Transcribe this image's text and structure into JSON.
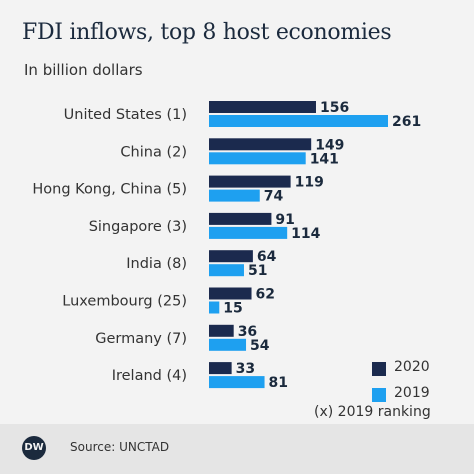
{
  "header": {
    "title": "FDI inflows, top 8 host economies",
    "subtitle": "In billion dollars"
  },
  "chart_data": {
    "type": "bar",
    "orientation": "horizontal",
    "title": "FDI inflows, top 8 host economies",
    "subtitle": "In billion dollars",
    "categories": [
      "United States (1)",
      "China (2)",
      "Hong Kong, China (5)",
      "Singapore (3)",
      "India (8)",
      "Luxembourg (25)",
      "Germany (7)",
      "Ireland (4)"
    ],
    "series": [
      {
        "name": "2020",
        "color": "#1b2a4e",
        "values": [
          156,
          149,
          119,
          91,
          64,
          62,
          36,
          33
        ]
      },
      {
        "name": "2019",
        "color": "#1ea0f0",
        "values": [
          261,
          141,
          74,
          114,
          51,
          15,
          54,
          81
        ]
      }
    ],
    "xlim": [
      0,
      261
    ],
    "grid": false,
    "legend_position": "bottom-right"
  },
  "legend": {
    "note": "(x) 2019 ranking"
  },
  "footer": {
    "logo_text": "DW",
    "source": "Source: UNCTAD"
  }
}
